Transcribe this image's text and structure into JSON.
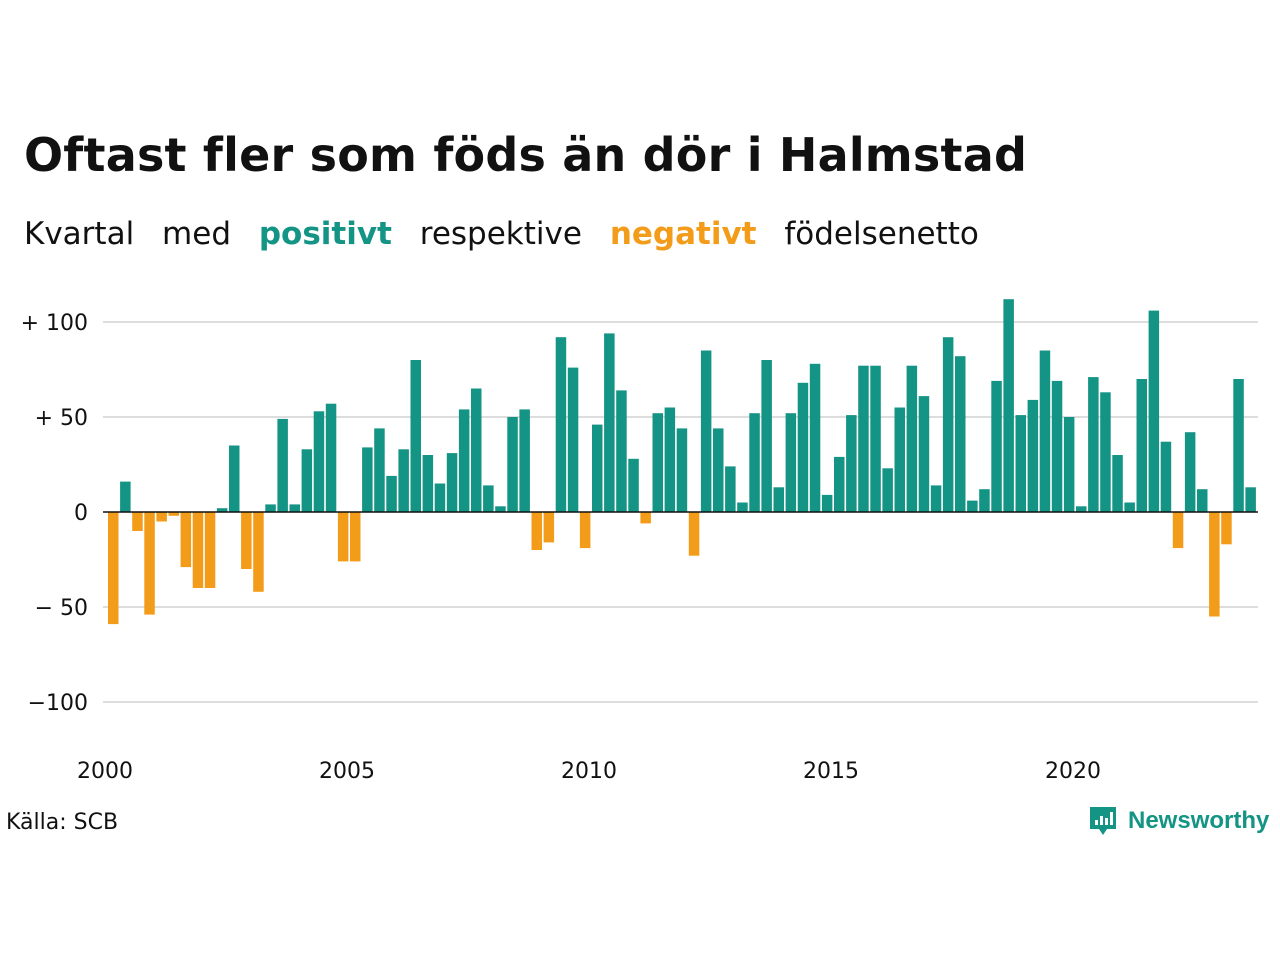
{
  "chart_data": {
    "type": "bar",
    "title": "Oftast fler som föds än dör i Halmstad",
    "subtitle": [
      "Kvartal",
      "med",
      "positivt",
      "respektive",
      "negativt",
      "födelsenetto"
    ],
    "colors": {
      "positive": "#149484",
      "negative": "#f39c19",
      "grid": "#dddddd"
    },
    "y_ticks": [
      {
        "value": 100,
        "label": "+ 100"
      },
      {
        "value": 50,
        "label": "+  50"
      },
      {
        "value": 0,
        "label": "0"
      },
      {
        "value": -50,
        "label": "− 50"
      },
      {
        "value": -100,
        "label": "−100"
      }
    ],
    "x_ticks": [
      {
        "value": 2000,
        "label": "2000"
      },
      {
        "value": 2005,
        "label": "2005"
      },
      {
        "value": 2010,
        "label": "2010"
      },
      {
        "value": 2015,
        "label": "2015"
      },
      {
        "value": 2020,
        "label": "2020"
      }
    ],
    "ylim": [
      -100,
      112
    ],
    "x_start": 2000,
    "values": [
      -59,
      16,
      -10,
      -54,
      -5,
      -2,
      -29,
      -40,
      -40,
      2,
      35,
      -30,
      -42,
      4,
      49,
      4,
      33,
      53,
      57,
      -26,
      -26,
      34,
      44,
      19,
      33,
      80,
      30,
      15,
      31,
      54,
      65,
      14,
      3,
      50,
      54,
      -20,
      -16,
      92,
      76,
      -19,
      46,
      94,
      64,
      28,
      -6,
      52,
      55,
      44,
      -23,
      85,
      44,
      24,
      5,
      52,
      80,
      13,
      52,
      68,
      78,
      9,
      29,
      51,
      77,
      77,
      23,
      55,
      77,
      61,
      14,
      92,
      82,
      6,
      12,
      69,
      112,
      51,
      59,
      85,
      69,
      50,
      3,
      71,
      63,
      30,
      5,
      70,
      106,
      37,
      -19,
      42,
      12,
      -55,
      -17,
      70,
      13
    ]
  },
  "source": "Källa: SCB",
  "brand": {
    "name": "Newsworthy",
    "icon": "bar-chart-bubble-icon"
  }
}
